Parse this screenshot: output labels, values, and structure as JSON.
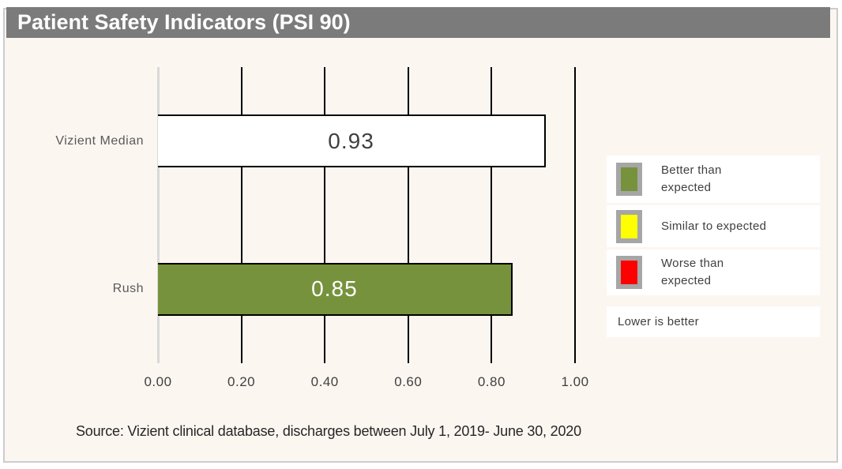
{
  "title_bar": {
    "bg_color": "#7b7b7b",
    "text_color": "#ffffff"
  },
  "chart_data": {
    "type": "bar",
    "orientation": "horizontal",
    "title": "Patient Safety Indicators (PSI 90)",
    "categories": [
      "Vizient Median",
      "Rush"
    ],
    "values": [
      0.93,
      0.85
    ],
    "value_labels": [
      "0.93",
      "0.85"
    ],
    "bar_colors": [
      "#ffffff",
      "#76923c"
    ],
    "value_label_colors": [
      "#404040",
      "#ffffff"
    ],
    "xlim": [
      0,
      1.0
    ],
    "x_ticks": [
      "0.00",
      "0.20",
      "0.40",
      "0.60",
      "0.80",
      "1.00"
    ],
    "grid": true,
    "gridline_color": "#000000",
    "zero_line_color": "#d9d9d9",
    "background_color": "#fcf6f1",
    "legend_position": "right",
    "legend": [
      {
        "label": "Better than expected",
        "lines": [
          "Better than",
          "expected"
        ],
        "color": "#76923c"
      },
      {
        "label": "Similar to expected",
        "lines": [
          "Similar to expected"
        ],
        "color": "#ffff00"
      },
      {
        "label": "Worse than expected",
        "lines": [
          "Worse than",
          "expected"
        ],
        "color": "#ff0000"
      }
    ],
    "note": "Lower is better",
    "source": "Source: Vizient clinical database, discharges between July 1, 2019- June 30, 2020"
  }
}
